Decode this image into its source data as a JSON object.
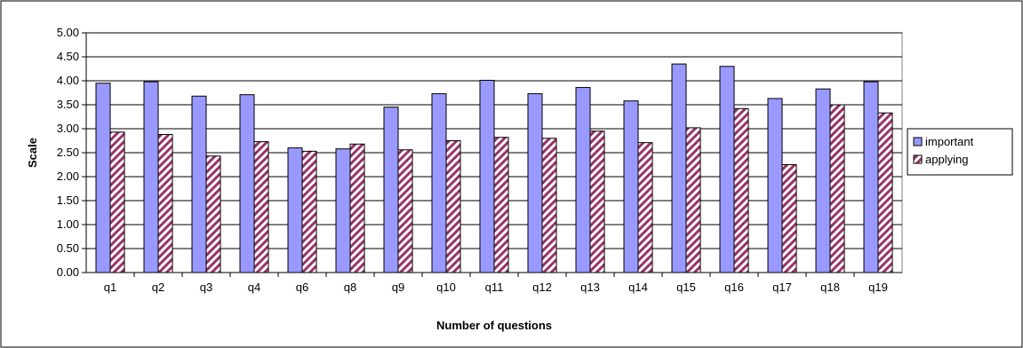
{
  "chart_data": {
    "type": "bar",
    "categories": [
      "q1",
      "q2",
      "q3",
      "q4",
      "q6",
      "q8",
      "q9",
      "q10",
      "q11",
      "q12",
      "q13",
      "q14",
      "q15",
      "q16",
      "q17",
      "q18",
      "q19"
    ],
    "series": [
      {
        "name": "important",
        "color": "#9999ff",
        "pattern": "solid",
        "values": [
          3.95,
          3.98,
          3.68,
          3.71,
          2.6,
          2.58,
          3.45,
          3.73,
          4.01,
          3.73,
          3.86,
          3.58,
          4.35,
          4.3,
          3.63,
          3.83,
          3.98
        ]
      },
      {
        "name": "applying",
        "color": "#993366",
        "pattern": "diagonal-stripes",
        "values": [
          2.93,
          2.88,
          2.43,
          2.73,
          2.53,
          2.68,
          2.56,
          2.75,
          2.82,
          2.8,
          2.95,
          2.71,
          3.02,
          3.42,
          2.25,
          3.5,
          3.33
        ]
      }
    ],
    "xlabel": "Number of questions",
    "ylabel": "Scale",
    "ylim": [
      0,
      5
    ],
    "yticks": [
      "0.00",
      "0.50",
      "1.00",
      "1.50",
      "2.00",
      "2.50",
      "3.00",
      "3.50",
      "4.00",
      "4.50",
      "5.00"
    ],
    "ystep": 0.5,
    "grid": true,
    "legend_position": "right"
  }
}
